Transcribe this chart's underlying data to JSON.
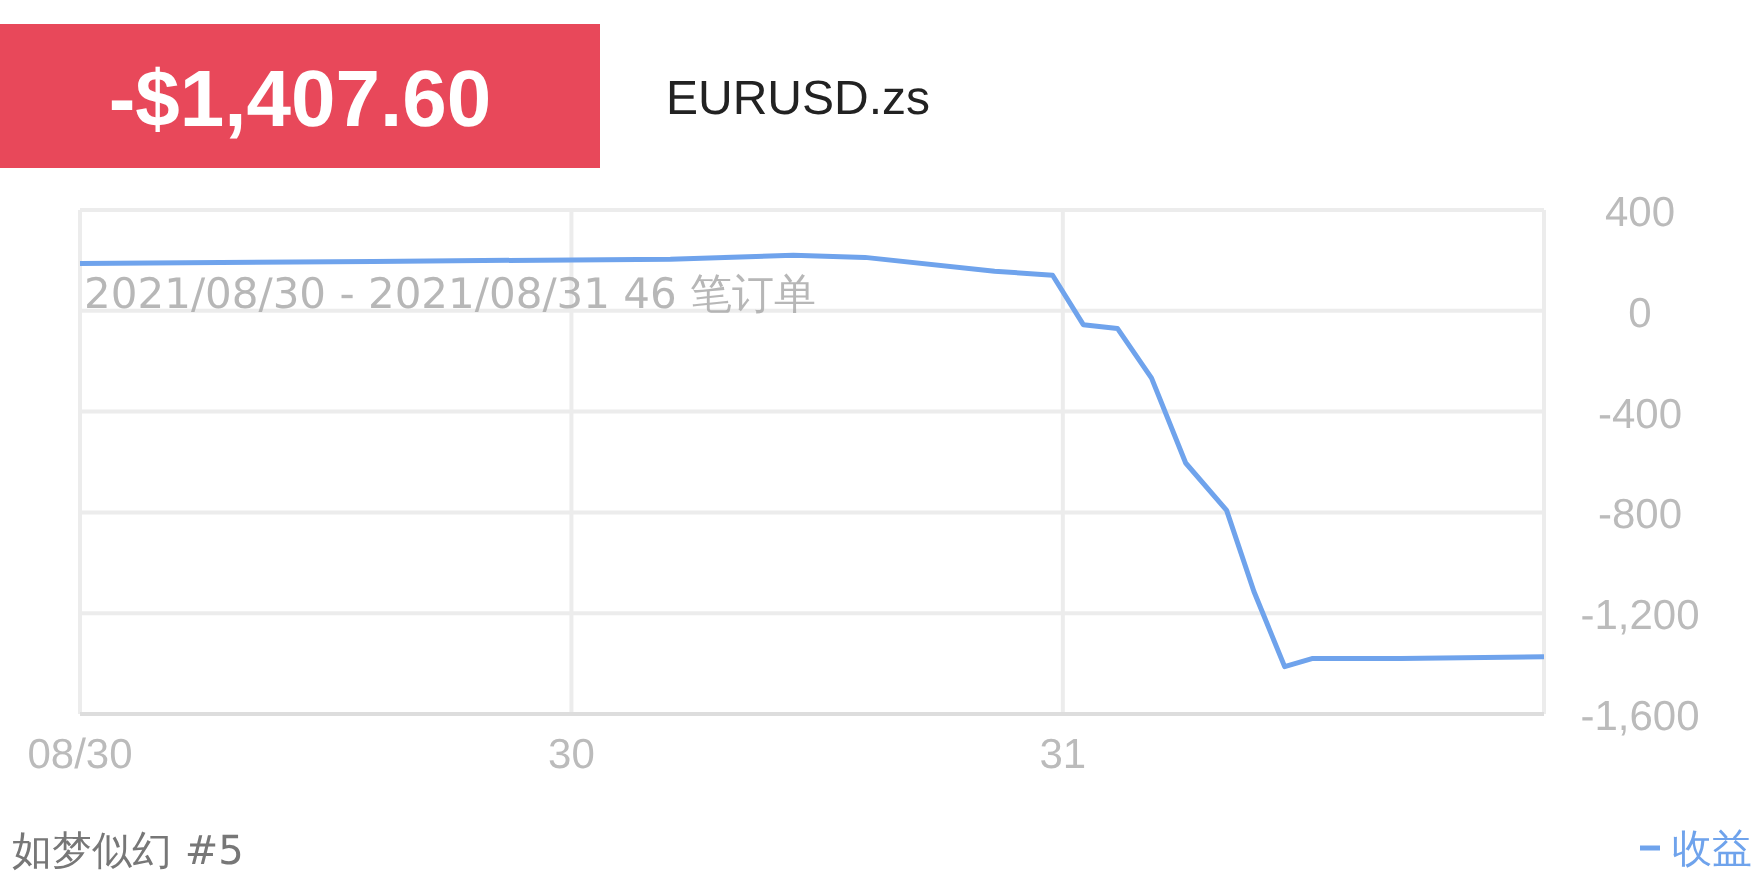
{
  "chart_data": {
    "type": "line",
    "title": "-$1,407.60",
    "subtitle": "EURUSD.zs",
    "annotations": [
      "2021/08/30 - 2021/08/31 46 笔订单",
      "如梦似幻 #5"
    ],
    "series": [
      {
        "name": "收益",
        "color": "#6fa3ec",
        "x": [
          "2021-08-30T00:00",
          "2021-08-30T07:10",
          "2021-08-30T14:25",
          "2021-08-30T17:25",
          "2021-08-30T19:10",
          "2021-08-30T22:20",
          "2021-08-30T23:45",
          "2021-08-31T00:30",
          "2021-08-31T01:20",
          "2021-08-31T02:10",
          "2021-08-31T03:00",
          "2021-08-31T04:00",
          "2021-08-31T04:40",
          "2021-08-31T05:25",
          "2021-08-31T06:05",
          "2021-08-31T08:15",
          "2021-08-31T11:45"
        ],
        "values": [
          188,
          196,
          205,
          220,
          212,
          157,
          141,
          -55,
          -70,
          -267,
          -604,
          -792,
          -1114,
          -1412,
          -1380,
          -1380,
          -1373
        ]
      }
    ],
    "xlim": [
      "2021-08-30T00:00",
      "2021-08-31T11:45"
    ],
    "xticks": [
      {
        "value": "2021-08-30T00:00",
        "label": "08/30"
      },
      {
        "value": "2021-08-30T12:00",
        "label": "30"
      },
      {
        "value": "2021-08-31T00:00",
        "label": "31"
      }
    ],
    "ylim": [
      -1600,
      400
    ],
    "yticks": [
      400,
      0,
      -400,
      -800,
      {
        "value": -1200,
        "label": "-1,200"
      },
      {
        "value": -1600,
        "label": "-1,600"
      }
    ],
    "grid": true,
    "legend": "bottom right",
    "marker": "none",
    "line_style": "solid"
  }
}
